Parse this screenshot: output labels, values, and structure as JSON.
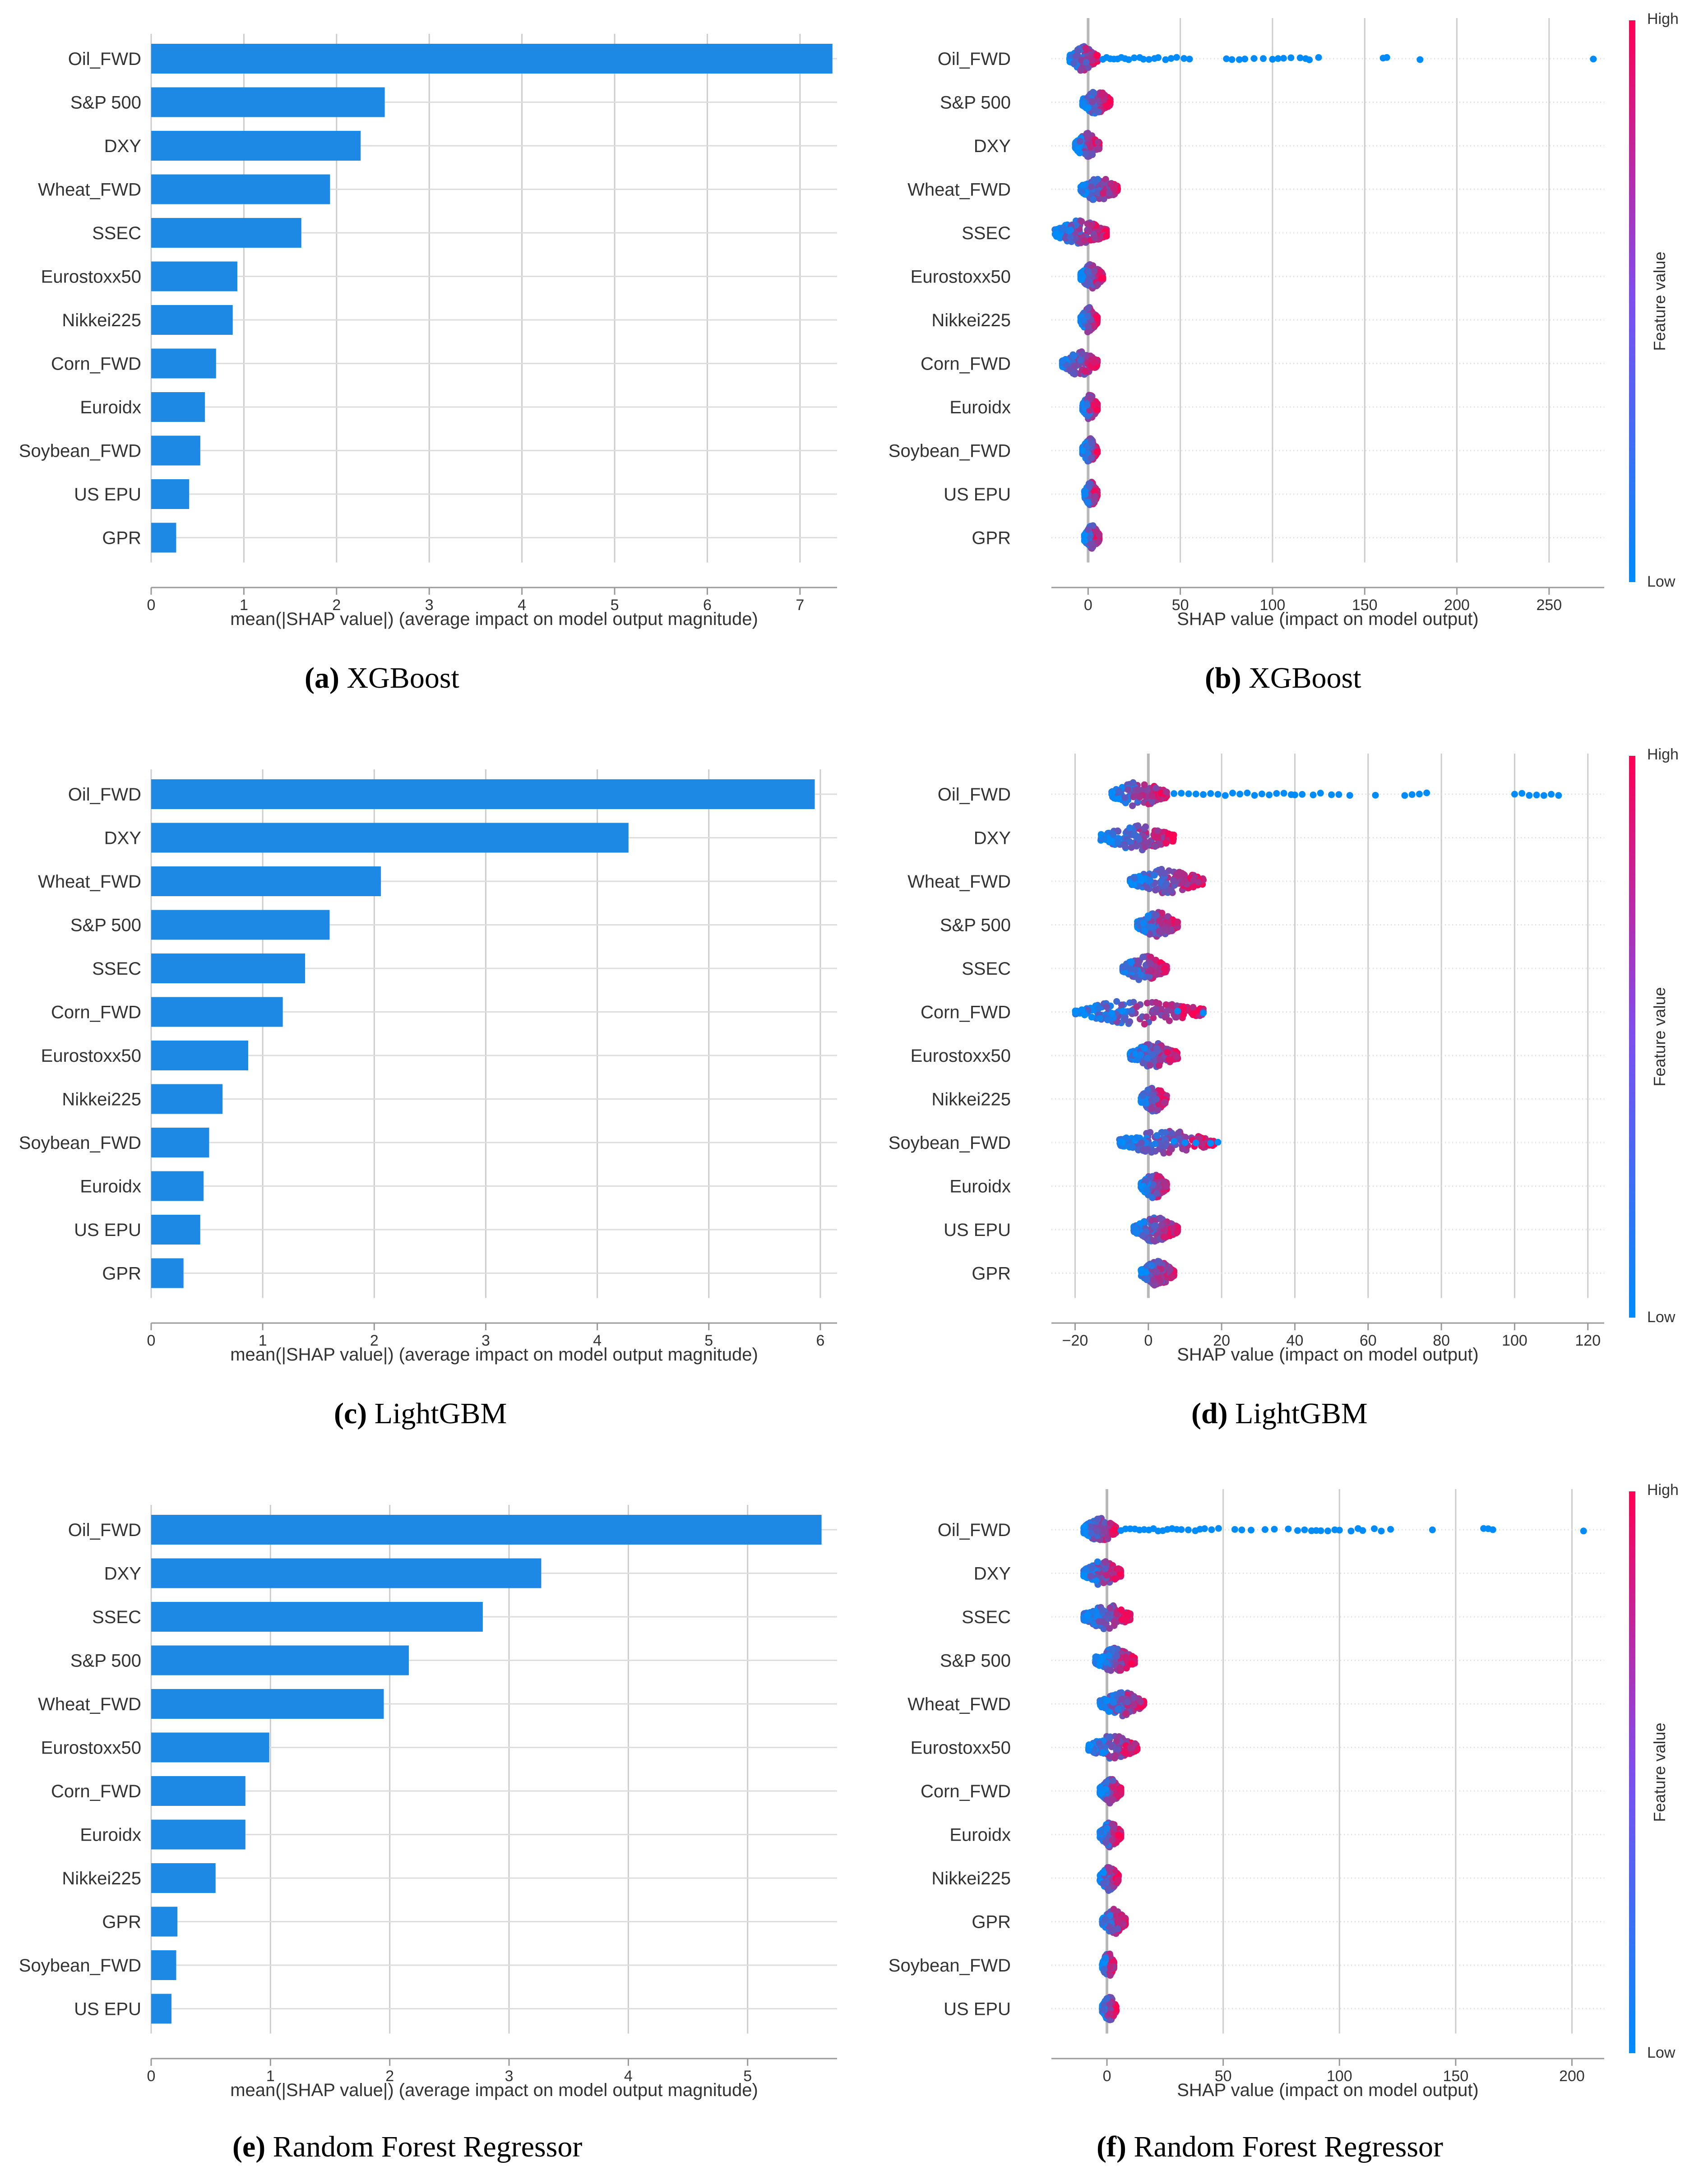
{
  "colors": {
    "bar": "#1e88e5",
    "low": "#008bfb",
    "high": "#ff0052",
    "grid": "#cccccc",
    "axis": "#999999",
    "text": "#333333"
  },
  "captions": [
    {
      "letter": "(a)",
      "text": "XGBoost"
    },
    {
      "letter": "(b)",
      "text": "XGBoost"
    },
    {
      "letter": "(c)",
      "text": "LightGBM"
    },
    {
      "letter": "(d)",
      "text": "LightGBM"
    },
    {
      "letter": "(e)",
      "text": "Random Forest Regressor"
    },
    {
      "letter": "(f)",
      "text": "Random Forest Regressor"
    }
  ],
  "chart_data": [
    {
      "type": "bar",
      "id": "a",
      "orientation": "horizontal",
      "xlabel": "mean(|SHAP value|) (average impact on model output magnitude)",
      "xlim": [
        0,
        7.4
      ],
      "xticks": [
        0,
        1,
        2,
        3,
        4,
        5,
        6,
        7
      ],
      "categories": [
        "Oil_FWD",
        "S&P 500",
        "DXY",
        "Wheat_FWD",
        "SSEC",
        "Eurostoxx50",
        "Nikkei225",
        "Corn_FWD",
        "Euroidx",
        "Soybean_FWD",
        "US EPU",
        "GPR"
      ],
      "values": [
        7.35,
        2.52,
        2.26,
        1.93,
        1.62,
        0.93,
        0.88,
        0.7,
        0.58,
        0.53,
        0.41,
        0.27
      ]
    },
    {
      "type": "scatter",
      "subtype": "beeswarm",
      "id": "b",
      "xlabel": "SHAP value (impact on model output)",
      "xlim": [
        -15,
        275
      ],
      "xticks": [
        0,
        50,
        100,
        150,
        200,
        250
      ],
      "colorbar": {
        "label": "Feature value",
        "high": "High",
        "low": "Low"
      },
      "categories": [
        "Oil_FWD",
        "S&P 500",
        "DXY",
        "Wheat_FWD",
        "SSEC",
        "Eurostoxx50",
        "Nikkei225",
        "Corn_FWD",
        "Euroidx",
        "Soybean_FWD",
        "US EPU",
        "GPR"
      ],
      "clusters": [
        {
          "min": -10,
          "max": 5,
          "tail": [
            8,
            10,
            12,
            14,
            16,
            18,
            20,
            22,
            25,
            28,
            30,
            33,
            36,
            38,
            42,
            45,
            48,
            52,
            55,
            75,
            78,
            82,
            85,
            90,
            95,
            100,
            103,
            106,
            110,
            115,
            118,
            120,
            125,
            160,
            162,
            180,
            274
          ]
        },
        {
          "min": -3,
          "max": 12,
          "tail": []
        },
        {
          "min": -7,
          "max": 6,
          "tail": []
        },
        {
          "min": -4,
          "max": 16,
          "tail": []
        },
        {
          "min": -18,
          "max": 10,
          "tail": []
        },
        {
          "min": -4,
          "max": 8,
          "tail": []
        },
        {
          "min": -4,
          "max": 5,
          "tail": []
        },
        {
          "min": -14,
          "max": 5,
          "tail": []
        },
        {
          "min": -3,
          "max": 5,
          "tail": []
        },
        {
          "min": -3,
          "max": 5,
          "tail": []
        },
        {
          "min": -2,
          "max": 5,
          "tail": []
        },
        {
          "min": -2,
          "max": 6,
          "tail": []
        }
      ]
    },
    {
      "type": "bar",
      "id": "c",
      "orientation": "horizontal",
      "xlabel": "mean(|SHAP value|) (average impact on model output magnitude)",
      "xlim": [
        0,
        6.15
      ],
      "xticks": [
        0,
        1,
        2,
        3,
        4,
        5,
        6
      ],
      "categories": [
        "Oil_FWD",
        "DXY",
        "Wheat_FWD",
        "S&P 500",
        "SSEC",
        "Corn_FWD",
        "Eurostoxx50",
        "Nikkei225",
        "Soybean_FWD",
        "Euroidx",
        "US EPU",
        "GPR"
      ],
      "values": [
        5.95,
        4.28,
        2.06,
        1.6,
        1.38,
        1.18,
        0.87,
        0.64,
        0.52,
        0.47,
        0.44,
        0.29
      ]
    },
    {
      "type": "scatter",
      "subtype": "beeswarm",
      "id": "d",
      "xlabel": "SHAP value (impact on model output)",
      "xlim": [
        -24,
        122
      ],
      "xticks": [
        -20,
        0,
        20,
        40,
        60,
        80,
        100,
        120
      ],
      "colorbar": {
        "label": "Feature value",
        "high": "High",
        "low": "Low"
      },
      "categories": [
        "Oil_FWD",
        "DXY",
        "Wheat_FWD",
        "S&P 500",
        "SSEC",
        "Corn_FWD",
        "Eurostoxx50",
        "Nikkei225",
        "Soybean_FWD",
        "Euroidx",
        "US EPU",
        "GPR"
      ],
      "clusters": [
        {
          "min": -10,
          "max": 5,
          "tail": [
            7,
            9,
            11,
            13,
            15,
            17,
            19,
            21,
            23,
            25,
            27,
            29,
            31,
            33,
            35,
            37,
            39,
            40,
            42,
            45,
            47,
            50,
            52,
            55,
            62,
            70,
            72,
            74,
            76,
            100,
            102,
            104,
            106,
            108,
            110,
            112
          ]
        },
        {
          "min": -13,
          "max": 7,
          "tail": []
        },
        {
          "min": -5,
          "max": 15,
          "tail": []
        },
        {
          "min": -3,
          "max": 8,
          "tail": []
        },
        {
          "min": -7,
          "max": 5,
          "tail": []
        },
        {
          "min": -20,
          "max": 15,
          "tail": [
            -18,
            -10,
            -7,
            8,
            15
          ]
        },
        {
          "min": -5,
          "max": 8,
          "tail": []
        },
        {
          "min": -2,
          "max": 5,
          "tail": []
        },
        {
          "min": -8,
          "max": 18,
          "tail": [
            -7,
            7,
            10,
            13,
            17,
            19
          ]
        },
        {
          "min": -2,
          "max": 5,
          "tail": []
        },
        {
          "min": -4,
          "max": 8,
          "tail": []
        },
        {
          "min": -2,
          "max": 7,
          "tail": []
        }
      ]
    },
    {
      "type": "bar",
      "id": "e",
      "orientation": "horizontal",
      "xlabel": "mean(|SHAP value|) (average impact on model output magnitude)",
      "xlim": [
        0,
        5.75
      ],
      "xticks": [
        0,
        1,
        2,
        3,
        4,
        5
      ],
      "categories": [
        "Oil_FWD",
        "DXY",
        "SSEC",
        "S&P 500",
        "Wheat_FWD",
        "Eurostoxx50",
        "Corn_FWD",
        "Euroidx",
        "Nikkei225",
        "GPR",
        "Soybean_FWD",
        "US EPU"
      ],
      "values": [
        5.62,
        3.27,
        2.78,
        2.16,
        1.95,
        0.99,
        0.79,
        0.79,
        0.54,
        0.22,
        0.21,
        0.17
      ]
    },
    {
      "type": "scatter",
      "subtype": "beeswarm",
      "id": "f",
      "xlabel": "SHAP value (impact on model output)",
      "xlim": [
        -20,
        210
      ],
      "xticks": [
        0,
        50,
        100,
        150,
        200
      ],
      "colorbar": {
        "label": "Feature value",
        "high": "High",
        "low": "Low"
      },
      "categories": [
        "Oil_FWD",
        "DXY",
        "SSEC",
        "S&P 500",
        "Wheat_FWD",
        "Eurostoxx50",
        "Corn_FWD",
        "Euroidx",
        "Nikkei225",
        "GPR",
        "Soybean_FWD",
        "US EPU"
      ],
      "clusters": [
        {
          "min": -10,
          "max": 4,
          "tail": [
            6,
            8,
            10,
            12,
            14,
            16,
            18,
            20,
            22,
            24,
            26,
            28,
            30,
            32,
            35,
            38,
            40,
            42,
            45,
            48,
            55,
            58,
            62,
            68,
            72,
            78,
            82,
            85,
            88,
            90,
            92,
            95,
            98,
            100,
            105,
            108,
            110,
            115,
            118,
            122,
            140,
            162,
            164,
            166,
            205
          ]
        },
        {
          "min": -10,
          "max": 6,
          "tail": []
        },
        {
          "min": -10,
          "max": 10,
          "tail": []
        },
        {
          "min": -5,
          "max": 12,
          "tail": []
        },
        {
          "min": -3,
          "max": 16,
          "tail": []
        },
        {
          "min": -8,
          "max": 13,
          "tail": []
        },
        {
          "min": -3,
          "max": 6,
          "tail": []
        },
        {
          "min": -3,
          "max": 6,
          "tail": []
        },
        {
          "min": -3,
          "max": 5,
          "tail": []
        },
        {
          "min": -2,
          "max": 8,
          "tail": []
        },
        {
          "min": -2,
          "max": 3,
          "tail": []
        },
        {
          "min": -2,
          "max": 4,
          "tail": []
        }
      ]
    }
  ]
}
